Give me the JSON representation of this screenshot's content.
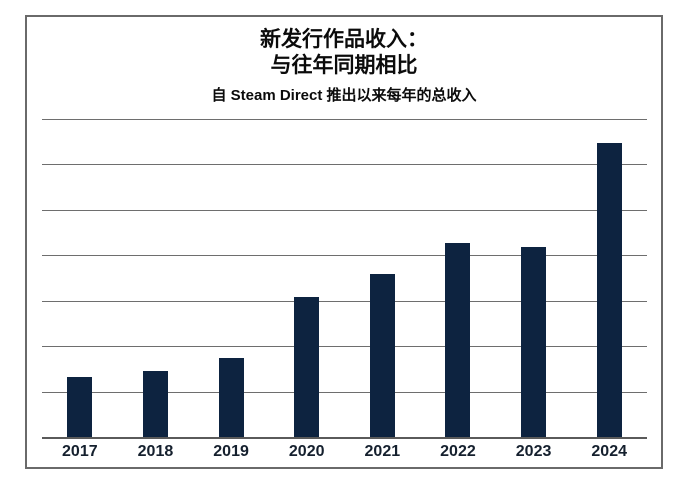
{
  "header": {
    "title_line1": "新发行作品收入：",
    "title_line2": "与往年同期相比",
    "subtitle": "自 Steam Direct 推出以来每年的总收入"
  },
  "chart_data": {
    "type": "bar",
    "title": "新发行作品收入：与往年同期相比",
    "subtitle": "自 Steam Direct 推出以来每年的总收入",
    "categories": [
      "2017",
      "2018",
      "2019",
      "2020",
      "2021",
      "2022",
      "2023",
      "2024"
    ],
    "values": [
      1.32,
      1.46,
      1.73,
      3.09,
      3.58,
      4.28,
      4.19,
      6.48
    ],
    "value_units": "relative gridline units (y-axis has no visible labels; 1 unit = 1 gridline interval)",
    "xlabel": "",
    "ylabel": "",
    "ylim": [
      0,
      7
    ],
    "gridline_count": 8,
    "grid": "horizontal only, gray lines, bottom line is baseline",
    "legend": "none",
    "bar_color": "#0d2340"
  },
  "colors": {
    "bar": "#0d2340",
    "gridline": "#6e6e6e",
    "frame_border": "#6a6a6a",
    "title_text": "#0b0b0b",
    "tick_label_text": "#15202e",
    "background": "#ffffff"
  }
}
